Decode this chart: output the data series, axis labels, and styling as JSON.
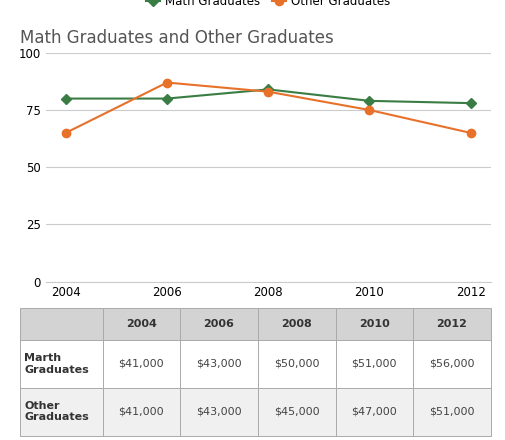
{
  "title": "Math Graduates and Other Graduates",
  "years": [
    2004,
    2006,
    2008,
    2010,
    2012
  ],
  "math_graduates": [
    80,
    80,
    84,
    79,
    78
  ],
  "other_graduates": [
    65,
    87,
    83,
    75,
    65
  ],
  "math_color": "#3a7d44",
  "other_color": "#e8712a",
  "ylim": [
    0,
    100
  ],
  "yticks": [
    0,
    25,
    50,
    75,
    100
  ],
  "legend_labels": [
    "Math Graduates",
    "Other Graduates"
  ],
  "table_headers": [
    "",
    "2004",
    "2006",
    "2008",
    "2010",
    "2012"
  ],
  "table_row1_label": "Marth\nGraduates",
  "table_row2_label": "Other\nGraduates",
  "table_row1_values": [
    "$41,000",
    "$43,000",
    "$50,000",
    "$51,000",
    "$56,000"
  ],
  "table_row2_values": [
    "$41,000",
    "$43,000",
    "$45,000",
    "$47,000",
    "$51,000"
  ],
  "bg_color": "#ffffff",
  "grid_color": "#cccccc",
  "title_fontsize": 12,
  "legend_fontsize": 8.5,
  "tick_fontsize": 8.5,
  "table_header_bg": "#d3d3d3",
  "table_cell_bg": "#ffffff",
  "table_row2_bg": "#f0f0f0",
  "table_border_color": "#aaaaaa",
  "table_fontsize": 8
}
